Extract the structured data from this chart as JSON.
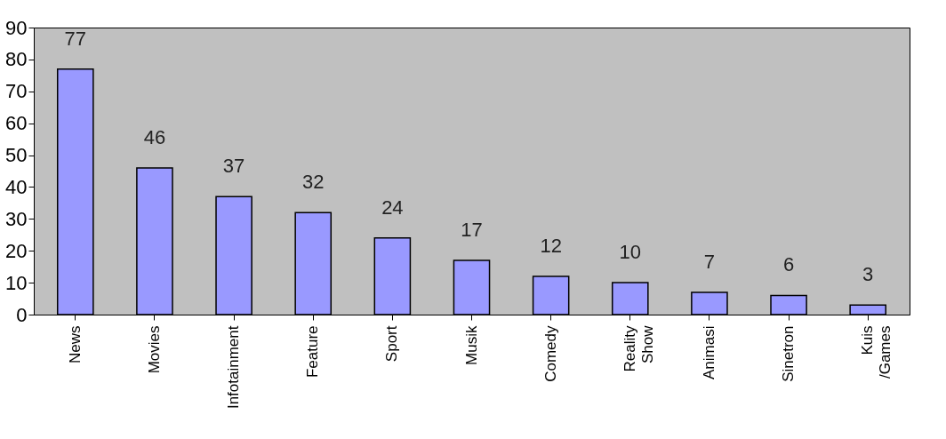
{
  "chart_data": {
    "type": "bar",
    "categories": [
      "News",
      "Movies",
      "Infotainment",
      "Feature",
      "Sport",
      "Musik",
      "Comedy",
      "Reality\nShow",
      "Animasi",
      "Sinetron",
      "Kuis\n/Games"
    ],
    "values": [
      77,
      46,
      37,
      32,
      24,
      17,
      12,
      10,
      7,
      6,
      3
    ],
    "color": "#9999ff",
    "ylim": [
      0,
      90
    ],
    "yticks": [
      0,
      10,
      20,
      30,
      40,
      50,
      60,
      70,
      80,
      90
    ],
    "data_labels": true
  }
}
